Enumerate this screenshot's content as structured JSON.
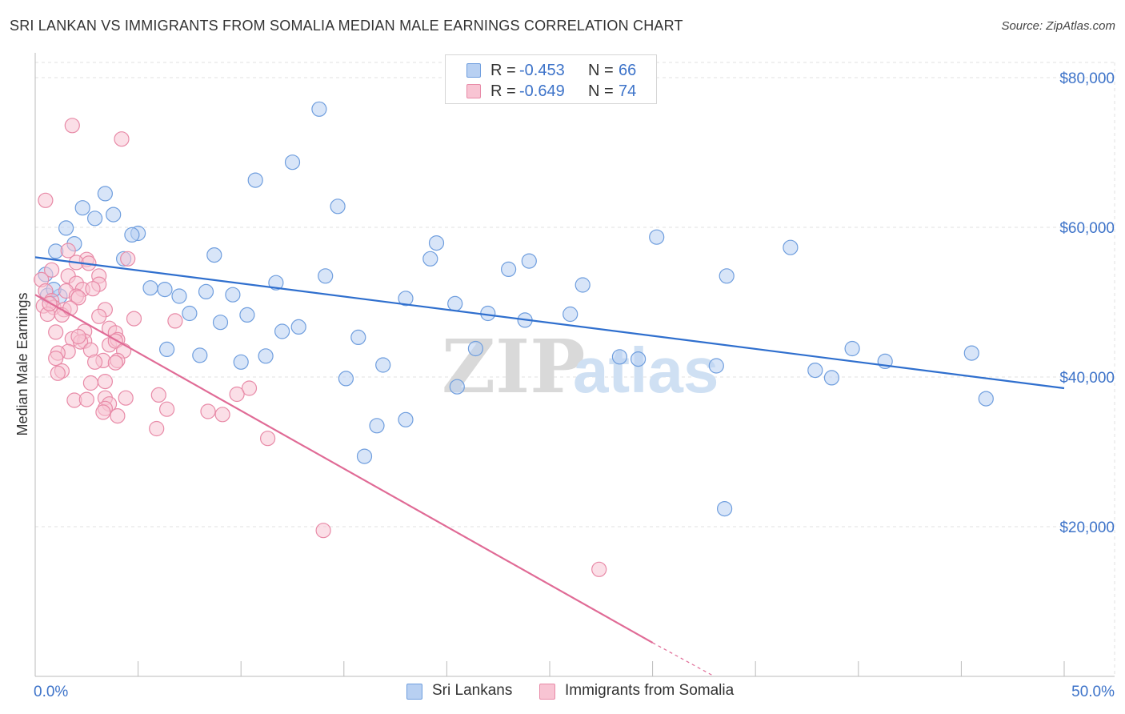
{
  "title": "SRI LANKAN VS IMMIGRANTS FROM SOMALIA MEDIAN MALE EARNINGS CORRELATION CHART",
  "source": "Source: ZipAtlas.com",
  "watermark": {
    "zip": "ZIP",
    "atlas": "atlas"
  },
  "legend": {
    "rows": [
      {
        "r_label": "R =",
        "r_value": "-0.453",
        "n_label": "N =",
        "n_value": "66"
      },
      {
        "r_label": "R =",
        "r_value": "-0.649",
        "n_label": "N =",
        "n_value": "74"
      }
    ]
  },
  "bottom_legend": [
    "Sri Lankans",
    "Immigrants from Somalia"
  ],
  "colors": {
    "blue_fill": "#b8d0f2",
    "blue_stroke": "#6f9ede",
    "blue_line": "#2f6fce",
    "pink_fill": "#f8c4d3",
    "pink_stroke": "#e88aa7",
    "pink_line": "#e06b96",
    "tick_label": "#3d73c9",
    "grid": "#e2e2e2"
  },
  "chart_data": {
    "type": "scatter",
    "title": "SRI LANKAN VS IMMIGRANTS FROM SOMALIA MEDIAN MALE EARNINGS CORRELATION CHART",
    "xlabel": "",
    "ylabel": "Median Male Earnings",
    "xlim": [
      0,
      50
    ],
    "ylim": [
      0,
      80000
    ],
    "x_tick_labels": [
      "0.0%",
      "50.0%"
    ],
    "y_ticks": [
      20000,
      40000,
      60000,
      80000
    ],
    "y_tick_labels": [
      "$20,000",
      "$40,000",
      "$60,000",
      "$80,000"
    ],
    "grid": true,
    "series": [
      {
        "name": "Sri Lankans",
        "r": -0.453,
        "n": 66,
        "trend": {
          "x": [
            0,
            50
          ],
          "y": [
            56000,
            38500
          ]
        },
        "points": [
          [
            13.8,
            75800
          ],
          [
            12.5,
            68700
          ],
          [
            10.7,
            66300
          ],
          [
            14.7,
            62800
          ],
          [
            3.4,
            64500
          ],
          [
            2.3,
            62600
          ],
          [
            3.8,
            61700
          ],
          [
            2.9,
            61200
          ],
          [
            1.5,
            59900
          ],
          [
            5.0,
            59200
          ],
          [
            4.7,
            59000
          ],
          [
            1.9,
            57800
          ],
          [
            1.0,
            56800
          ],
          [
            30.2,
            58700
          ],
          [
            19.5,
            57900
          ],
          [
            36.7,
            57300
          ],
          [
            8.7,
            56300
          ],
          [
            4.3,
            55800
          ],
          [
            19.2,
            55800
          ],
          [
            24.0,
            55500
          ],
          [
            23.0,
            54400
          ],
          [
            0.5,
            53700
          ],
          [
            14.1,
            53500
          ],
          [
            33.6,
            53500
          ],
          [
            11.7,
            52600
          ],
          [
            26.6,
            52300
          ],
          [
            5.6,
            51900
          ],
          [
            6.3,
            51700
          ],
          [
            8.3,
            51400
          ],
          [
            0.6,
            50900
          ],
          [
            9.6,
            51000
          ],
          [
            7.0,
            50800
          ],
          [
            18.0,
            50500
          ],
          [
            20.4,
            49800
          ],
          [
            22.0,
            48500
          ],
          [
            7.5,
            48500
          ],
          [
            10.3,
            48300
          ],
          [
            23.8,
            47600
          ],
          [
            26.0,
            48400
          ],
          [
            9.0,
            47300
          ],
          [
            12.8,
            46700
          ],
          [
            12.0,
            46100
          ],
          [
            15.7,
            45300
          ],
          [
            6.4,
            43700
          ],
          [
            21.4,
            43800
          ],
          [
            39.7,
            43800
          ],
          [
            45.5,
            43200
          ],
          [
            8.0,
            42900
          ],
          [
            11.2,
            42800
          ],
          [
            28.4,
            42700
          ],
          [
            29.3,
            42400
          ],
          [
            10.0,
            42000
          ],
          [
            16.9,
            41600
          ],
          [
            33.1,
            41500
          ],
          [
            41.3,
            42100
          ],
          [
            37.9,
            40900
          ],
          [
            38.7,
            39900
          ],
          [
            15.1,
            39800
          ],
          [
            20.5,
            38700
          ],
          [
            46.2,
            37100
          ],
          [
            18.0,
            34300
          ],
          [
            16.6,
            33500
          ],
          [
            16.0,
            29400
          ],
          [
            33.5,
            22400
          ],
          [
            1.2,
            50800
          ],
          [
            0.9,
            51700
          ]
        ]
      },
      {
        "name": "Immigrants from Somalia",
        "r": -0.649,
        "n": 74,
        "trend": {
          "x": [
            0,
            30
          ],
          "y": [
            51000,
            4500
          ],
          "dashed_extension": {
            "x": [
              30,
              33
            ],
            "y": [
              4500,
              0
            ]
          }
        },
        "points": [
          [
            1.8,
            73600
          ],
          [
            4.2,
            71800
          ],
          [
            0.5,
            63600
          ],
          [
            1.6,
            56900
          ],
          [
            2.5,
            55700
          ],
          [
            2.0,
            55300
          ],
          [
            4.5,
            55800
          ],
          [
            2.6,
            55200
          ],
          [
            0.8,
            54300
          ],
          [
            1.6,
            53500
          ],
          [
            3.1,
            53500
          ],
          [
            0.3,
            53000
          ],
          [
            2.0,
            52500
          ],
          [
            3.1,
            52400
          ],
          [
            2.3,
            51700
          ],
          [
            1.5,
            51500
          ],
          [
            2.8,
            51800
          ],
          [
            0.5,
            51500
          ],
          [
            2.0,
            50800
          ],
          [
            2.1,
            50600
          ],
          [
            0.8,
            50200
          ],
          [
            0.4,
            49500
          ],
          [
            0.9,
            49300
          ],
          [
            1.4,
            49000
          ],
          [
            3.4,
            49000
          ],
          [
            0.6,
            48400
          ],
          [
            1.3,
            48300
          ],
          [
            3.1,
            48100
          ],
          [
            4.8,
            47800
          ],
          [
            6.8,
            47500
          ],
          [
            3.6,
            46500
          ],
          [
            1.0,
            46000
          ],
          [
            2.4,
            46100
          ],
          [
            3.9,
            45900
          ],
          [
            1.8,
            45100
          ],
          [
            2.4,
            44800
          ],
          [
            2.2,
            44700
          ],
          [
            3.6,
            44300
          ],
          [
            4.0,
            45000
          ],
          [
            3.9,
            44800
          ],
          [
            1.6,
            43400
          ],
          [
            4.3,
            43500
          ],
          [
            2.7,
            43600
          ],
          [
            1.1,
            43200
          ],
          [
            3.3,
            42200
          ],
          [
            4.0,
            42200
          ],
          [
            1.0,
            42500
          ],
          [
            3.9,
            41900
          ],
          [
            1.3,
            40800
          ],
          [
            1.1,
            40500
          ],
          [
            10.4,
            38500
          ],
          [
            2.7,
            39200
          ],
          [
            3.4,
            39400
          ],
          [
            6.0,
            37600
          ],
          [
            9.8,
            37700
          ],
          [
            4.4,
            37200
          ],
          [
            1.9,
            36900
          ],
          [
            2.5,
            37000
          ],
          [
            3.4,
            37200
          ],
          [
            3.6,
            36400
          ],
          [
            3.4,
            35800
          ],
          [
            6.4,
            35700
          ],
          [
            8.4,
            35400
          ],
          [
            3.3,
            35300
          ],
          [
            9.1,
            35000
          ],
          [
            4.0,
            34800
          ],
          [
            5.9,
            33100
          ],
          [
            11.3,
            31800
          ],
          [
            14.0,
            19500
          ],
          [
            27.4,
            14300
          ],
          [
            0.7,
            49800
          ],
          [
            1.7,
            49200
          ],
          [
            2.9,
            42000
          ],
          [
            2.1,
            45400
          ]
        ]
      }
    ]
  }
}
